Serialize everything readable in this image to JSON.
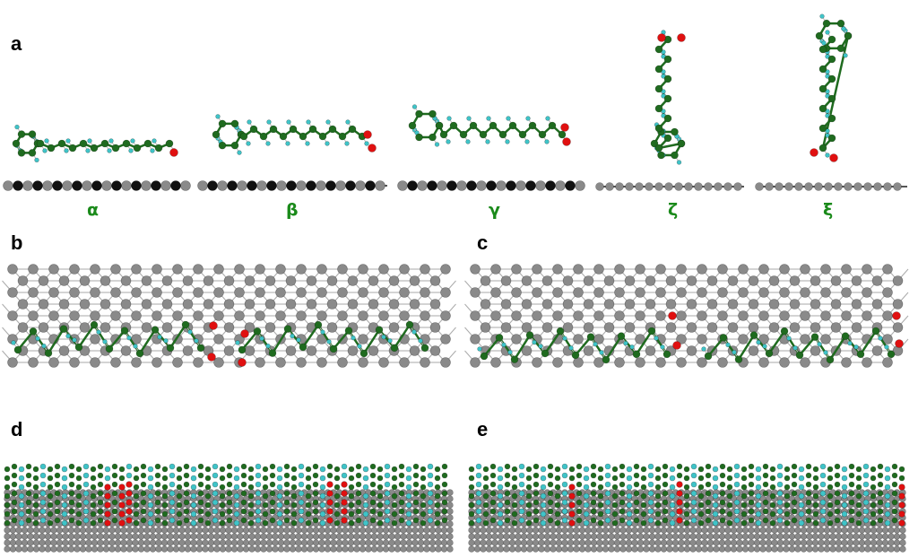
{
  "panels": {
    "a": "a",
    "b": "b",
    "c": "c",
    "d": "d",
    "e": "e"
  },
  "molecule_labels": [
    "α",
    "β",
    "γ",
    "ζ",
    "ξ"
  ],
  "colors": {
    "carbon": "#1f6b1f",
    "hydrogen": "#3fc4c8",
    "oxygen": "#e01010",
    "graphene": "#8a8a8a",
    "graphene_dark": "#111111",
    "label": "#1a8a1a"
  }
}
